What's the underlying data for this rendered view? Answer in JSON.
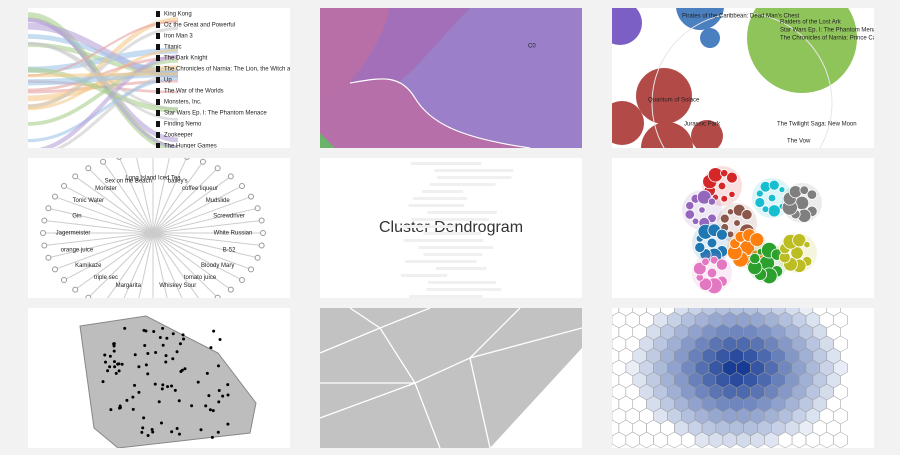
{
  "thumbnails": [
    {
      "labels": [
        "King Kong",
        "Oz the Great and Powerful",
        "Iron Man 3",
        "Titanic",
        "The Dark Knight",
        "The Chronicles of Narnia: The Lion, the Witch and",
        "Up",
        "The War of the Worlds",
        "Monsters, Inc.",
        "Star Wars Ep. I: The Phantom Menace",
        "Finding Nemo",
        "Zookeeper",
        "The Hunger Games"
      ]
    },
    {
      "labels": [
        "C0"
      ]
    },
    {
      "labels": [
        "Pirates of the Caribbean: Dead Man's Chest",
        "Raiders of the Lost Ark",
        "Star Wars Ep. I: The Phantom Menace",
        "The Chronicles of Narnia: Prince Caspian",
        "Quantum of Solace",
        "Jurassic Park",
        "The Twilight Saga: New Moon",
        "The Vow"
      ]
    },
    {
      "labels": [
        "Margarita",
        "triple sec",
        "Kamikaze",
        "orange juice",
        "Jagermeister",
        "Gin",
        "Tonic Water",
        "Monster",
        "Sex on the Beach",
        "Long Island Iced Tea",
        "bailey's",
        "coffee liqueur",
        "Mudslide",
        "Screwdriver",
        "White Russian",
        "B-52",
        "Bloody Mary",
        "tomato juice",
        "Whiskey Sour"
      ]
    },
    {
      "caption": "Cluster Dendrogram"
    }
  ]
}
